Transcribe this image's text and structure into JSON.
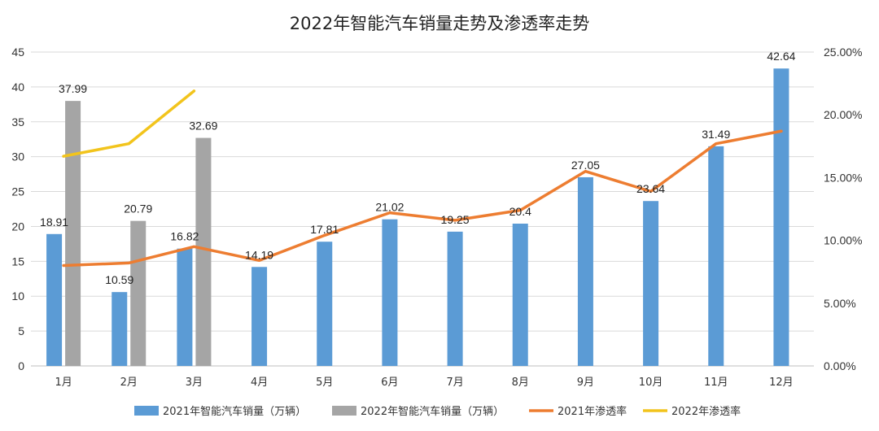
{
  "chart_data": {
    "type": "bar",
    "title": "2022年智能汽车销量走势及渗透率走势",
    "categories": [
      "1月",
      "2月",
      "3月",
      "4月",
      "5月",
      "6月",
      "7月",
      "8月",
      "9月",
      "10月",
      "11月",
      "12月"
    ],
    "y_left": {
      "min": 0,
      "max": 45,
      "step": 5,
      "ticks": [
        "0",
        "5",
        "10",
        "15",
        "20",
        "25",
        "30",
        "35",
        "40",
        "45"
      ]
    },
    "y_right": {
      "min": 0,
      "max": 0.25,
      "step": 0.05,
      "ticks": [
        "0.00%",
        "5.00%",
        "10.00%",
        "15.00%",
        "20.00%",
        "25.00%"
      ]
    },
    "grid": true,
    "legend_position": "bottom",
    "series": [
      {
        "name": "2021年智能汽车销量（万辆）",
        "kind": "bar",
        "color": "#5B9BD5",
        "values": [
          18.91,
          10.59,
          16.82,
          14.19,
          17.81,
          21.02,
          19.25,
          20.4,
          27.05,
          23.64,
          31.49,
          42.64
        ],
        "labels": [
          "18.91",
          "10.59",
          "16.82",
          "14.19",
          "17.81",
          "21.02",
          "19.25",
          "20.4",
          "27.05",
          "23.64",
          "31.49",
          "42.64"
        ]
      },
      {
        "name": "2022年智能汽车销量（万辆）",
        "kind": "bar",
        "color": "#A5A5A5",
        "values": [
          37.99,
          20.79,
          32.69,
          null,
          null,
          null,
          null,
          null,
          null,
          null,
          null,
          null
        ],
        "labels": [
          "37.99",
          "20.79",
          "32.69",
          null,
          null,
          null,
          null,
          null,
          null,
          null,
          null,
          null
        ]
      },
      {
        "name": "2021年渗透率",
        "kind": "line",
        "axis": "right",
        "color": "#ED7D31",
        "values": [
          0.08,
          0.082,
          0.095,
          0.084,
          0.104,
          0.122,
          0.116,
          0.124,
          0.155,
          0.139,
          0.177,
          0.187
        ]
      },
      {
        "name": "2022年渗透率",
        "kind": "line",
        "axis": "right",
        "color": "#F2C41C",
        "values": [
          0.167,
          0.177,
          0.219,
          null,
          null,
          null,
          null,
          null,
          null,
          null,
          null,
          null
        ]
      }
    ]
  }
}
